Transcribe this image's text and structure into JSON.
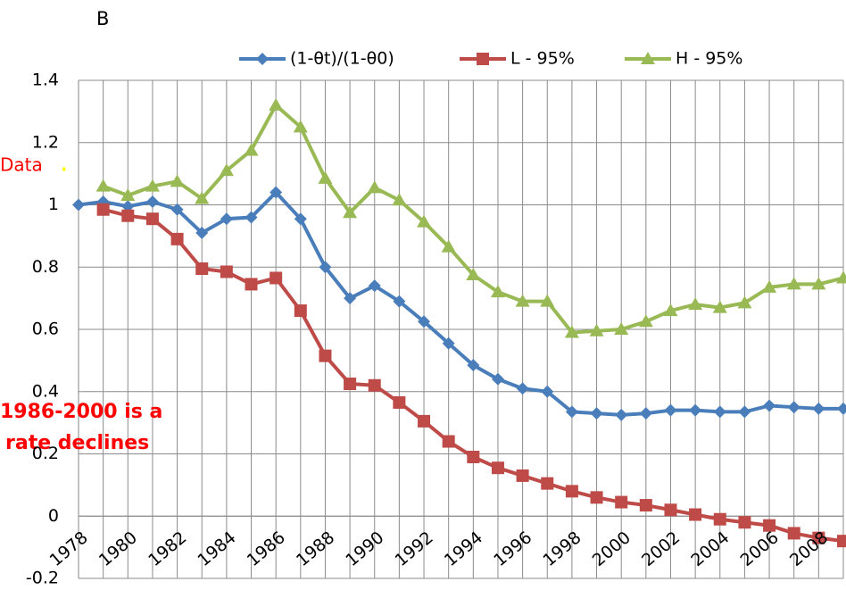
{
  "chart_data": {
    "type": "line",
    "title": "B",
    "x": [
      1978,
      1979,
      1980,
      1981,
      1982,
      1983,
      1984,
      1985,
      1986,
      1987,
      1988,
      1989,
      1990,
      1991,
      1992,
      1993,
      1994,
      1995,
      1996,
      1997,
      1998,
      1999,
      2000,
      2001,
      2002,
      2003,
      2004,
      2005,
      2006,
      2007,
      2008,
      2009
    ],
    "xlim": [
      1978,
      2009
    ],
    "xticks": [
      1978,
      1980,
      1982,
      1984,
      1986,
      1988,
      1990,
      1992,
      1994,
      1996,
      1998,
      2000,
      2002,
      2004,
      2006,
      2008
    ],
    "ylim": [
      -0.2,
      1.4
    ],
    "yticks": [
      -0.2,
      0,
      0.2,
      0.4,
      0.6,
      0.8,
      1,
      1.2,
      1.4
    ],
    "grid": true,
    "legend": "top",
    "series": [
      {
        "name": "(1-θt)/(1-θ0)",
        "color": "#4a7ebb",
        "marker": "diamond",
        "values": [
          1.0,
          1.01,
          0.995,
          1.01,
          0.985,
          0.91,
          0.955,
          0.96,
          1.04,
          0.955,
          0.8,
          0.7,
          0.74,
          0.69,
          0.625,
          0.555,
          0.485,
          0.44,
          0.41,
          0.4,
          0.335,
          0.33,
          0.325,
          0.33,
          0.34,
          0.34,
          0.335,
          0.335,
          0.355,
          0.35,
          0.345,
          0.345
        ]
      },
      {
        "name": "L - 95%",
        "color": "#be4b48",
        "marker": "square",
        "values": [
          null,
          0.985,
          0.965,
          0.955,
          0.89,
          0.795,
          0.785,
          0.745,
          0.765,
          0.66,
          0.515,
          0.425,
          0.42,
          0.365,
          0.305,
          0.24,
          0.19,
          0.155,
          0.13,
          0.105,
          0.08,
          0.06,
          0.045,
          0.035,
          0.02,
          0.005,
          -0.01,
          -0.02,
          -0.03,
          -0.055,
          -0.07,
          -0.08
        ]
      },
      {
        "name": "H - 95%",
        "color": "#98b954",
        "marker": "triangle",
        "values": [
          null,
          1.06,
          1.03,
          1.06,
          1.075,
          1.02,
          1.11,
          1.175,
          1.32,
          1.25,
          1.085,
          0.975,
          1.055,
          1.015,
          0.945,
          0.865,
          0.775,
          0.72,
          0.69,
          0.69,
          0.59,
          0.595,
          0.6,
          0.625,
          0.66,
          0.68,
          0.67,
          0.685,
          0.735,
          0.745,
          0.745,
          0.765
        ]
      }
    ],
    "annotations": [
      "Data",
      ".",
      "1986-2000 is a",
      "rate declines"
    ]
  }
}
